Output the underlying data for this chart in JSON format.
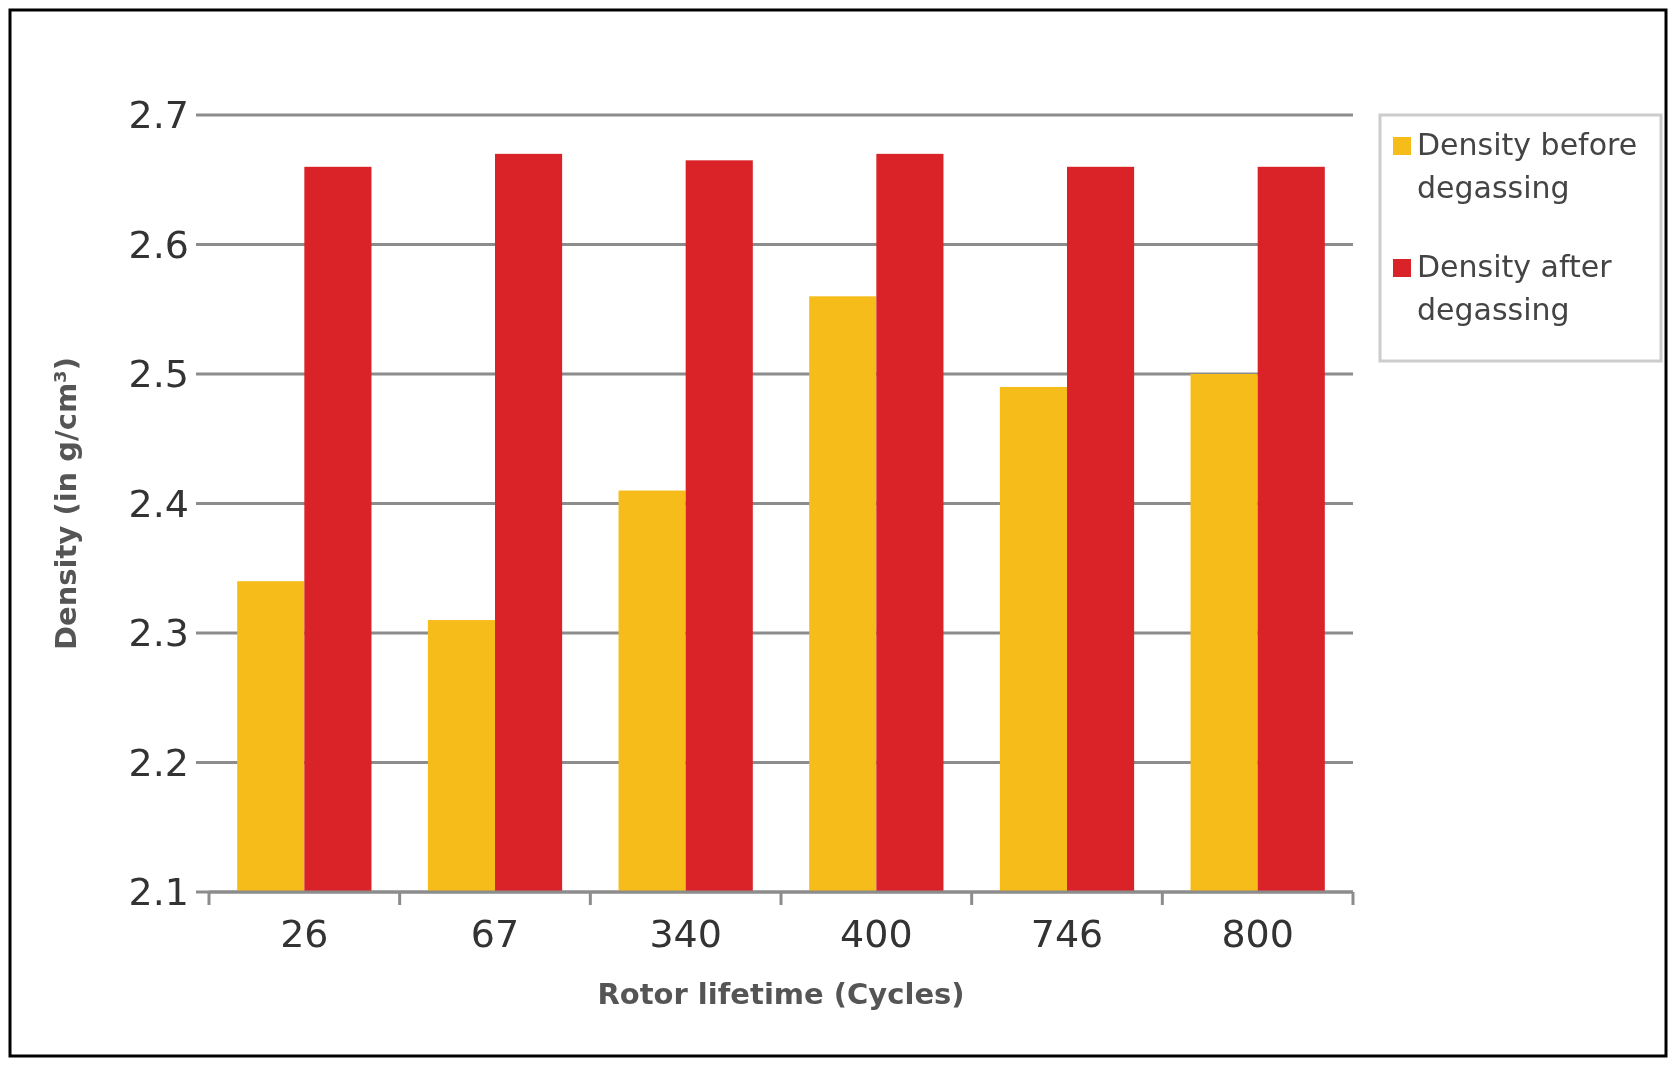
{
  "chart_data": {
    "type": "bar",
    "xlabel": "Rotor lifetime (Cycles)",
    "ylabel": "Density (in g/cm³)",
    "categories": [
      "26",
      "67",
      "340",
      "400",
      "746",
      "800"
    ],
    "series": [
      {
        "name": "Density before degassing",
        "color": "#f6bc1a",
        "values": [
          2.34,
          2.31,
          2.41,
          2.56,
          2.49,
          2.5
        ]
      },
      {
        "name": "Density after degassing",
        "color": "#d92328",
        "values": [
          2.66,
          2.67,
          2.665,
          2.67,
          2.66,
          2.66
        ]
      }
    ],
    "ylim": [
      2.1,
      2.7
    ],
    "yticks": [
      2.1,
      2.2,
      2.3,
      2.4,
      2.5,
      2.6,
      2.7
    ],
    "grid": "y",
    "legend": "top right"
  }
}
